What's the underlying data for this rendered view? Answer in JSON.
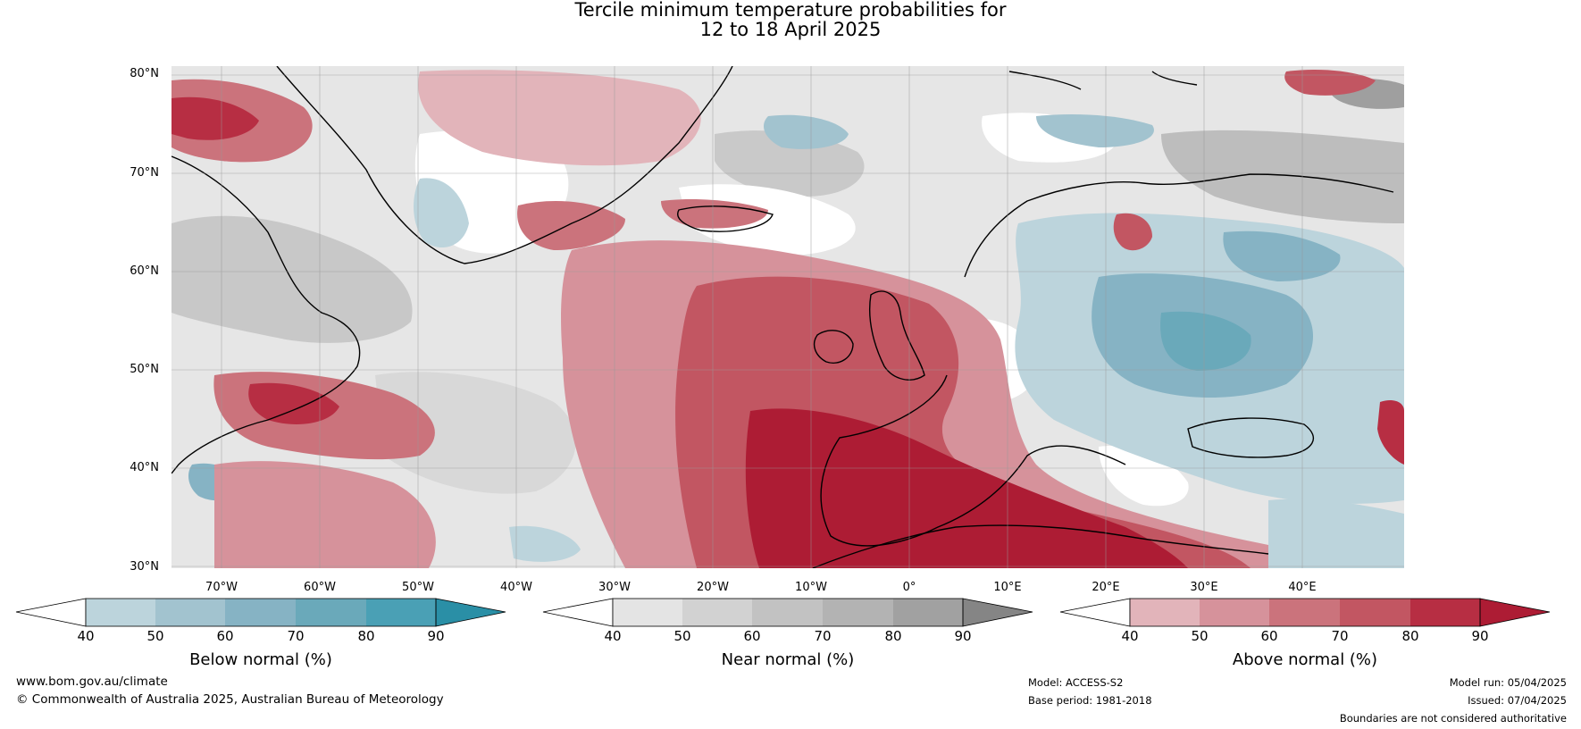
{
  "title": {
    "line1": "Tercile minimum temperature probabilities for",
    "line2": "12 to 18 April 2025"
  },
  "map": {
    "lat_labels": [
      "80°N",
      "70°N",
      "60°N",
      "50°N",
      "40°N",
      "30°N"
    ],
    "lon_labels": [
      "70°W",
      "60°W",
      "50°W",
      "40°W",
      "30°W",
      "20°W",
      "10°W",
      "0°",
      "10°E",
      "20°E",
      "30°E",
      "40°E"
    ],
    "extent": {
      "lon": [
        -77,
        48
      ],
      "lat": [
        30,
        81
      ]
    },
    "colors": {
      "below": [
        "#bcd4dc",
        "#a2c3cf",
        "#86b3c4",
        "#6aa9ba",
        "#4aa0b5",
        "#2a8fa6"
      ],
      "near": [
        "#e4e4e4",
        "#d2d2d2",
        "#c2c2c2",
        "#b3b3b3",
        "#a1a1a1",
        "#858585"
      ],
      "above": [
        "#e2b4ba",
        "#d6929b",
        "#cb737c",
        "#c25662",
        "#b72e43",
        "#ad1c34"
      ]
    }
  },
  "colorbars": [
    {
      "name": "below",
      "title": "Below normal (%)",
      "ticks": [
        "40",
        "50",
        "60",
        "70",
        "80",
        "90"
      ]
    },
    {
      "name": "near",
      "title": "Near normal (%)",
      "ticks": [
        "40",
        "50",
        "60",
        "70",
        "80",
        "90"
      ]
    },
    {
      "name": "above",
      "title": "Above normal (%)",
      "ticks": [
        "40",
        "50",
        "60",
        "70",
        "80",
        "90"
      ]
    }
  ],
  "footer": {
    "website": "www.bom.gov.au/climate",
    "copyright": "© Commonwealth of Australia 2025, Australian Bureau of Meteorology",
    "model": "Model: ACCESS-S2",
    "base_period": "Base period: 1981-2018",
    "model_run": "Model run: 05/04/2025",
    "issued": "Issued: 07/04/2025",
    "disclaimer": "Boundaries are not considered authoritative"
  }
}
